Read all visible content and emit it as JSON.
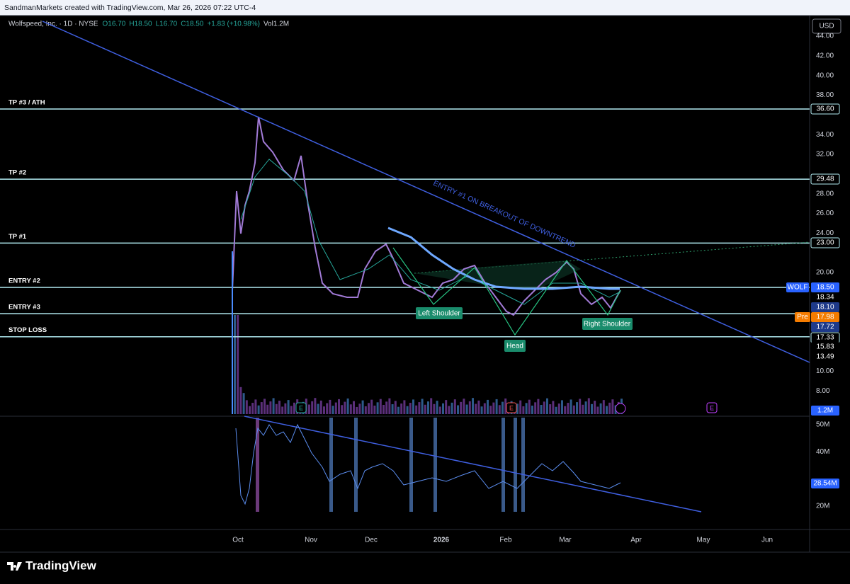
{
  "header": {
    "attribution": "SandmanMarkets created with TradingView.com, Mar 26, 2026 07:22 UTC-4",
    "symbol": "Wolfspeed, Inc. · 1D · NYSE",
    "ohlc": [
      "O16.70",
      "H18.50",
      "L16.70",
      "C18.50",
      "+1.83 (+10.98%)"
    ],
    "volume": "Vol1.2M",
    "currency": "USD"
  },
  "price_axis": {
    "ticks": [
      {
        "value": 44,
        "label": "44.00"
      },
      {
        "value": 42,
        "label": "42.00"
      },
      {
        "value": 40,
        "label": "40.00"
      },
      {
        "value": 38,
        "label": "38.00"
      },
      {
        "value": 34,
        "label": "34.00"
      },
      {
        "value": 32,
        "label": "32.00"
      },
      {
        "value": 28,
        "label": "28.00"
      },
      {
        "value": 26,
        "label": "26.00"
      },
      {
        "value": 24,
        "label": "24.00"
      },
      {
        "value": 20,
        "label": "20.00"
      },
      {
        "value": 10,
        "label": "10.00"
      },
      {
        "value": 8,
        "label": "8.00"
      }
    ]
  },
  "levels": [
    {
      "label": "TP #3 / ATH",
      "price": {
        "value": 36.6,
        "label": "36.60"
      }
    },
    {
      "label": "TP #2",
      "price": {
        "value": 29.48,
        "label": "29.48"
      }
    },
    {
      "label": "TP #1",
      "price": {
        "value": 23,
        "label": "23.00"
      }
    },
    {
      "label": "ENTRY #2",
      "price": {
        "value": 18.5,
        "label": "18.50"
      }
    },
    {
      "label": "ENTRY #3",
      "price": {
        "value": 15.83,
        "label": "15.83"
      }
    },
    {
      "label": "STOP LOSS",
      "price": {
        "value": 13.49,
        "label": "13.49"
      }
    }
  ],
  "tags": {
    "symbol": "WOLF",
    "pre": "Pre",
    "prices": [
      "18.34",
      "18.10",
      "17.98",
      "17.72",
      "17.33"
    ],
    "volume": "1.2M",
    "indicator": "28.54M"
  },
  "annotations": {
    "trend": "ENTRY #1 ON BREAKOUT OF DOWNTREND",
    "left_shoulder": "Left Shoulder",
    "head": "Head",
    "right_shoulder": "Right Shoulder"
  },
  "events": [
    "E",
    "E",
    "E"
  ],
  "indicator_axis": {
    "ticks": [
      {
        "value": 50,
        "label": "50M"
      },
      {
        "value": 40,
        "label": "40M"
      },
      {
        "value": 20,
        "label": "20M"
      }
    ]
  },
  "time_axis": [
    "Oct",
    "Nov",
    "Dec",
    "2026",
    "Feb",
    "Mar",
    "Apr",
    "May",
    "Jun"
  ],
  "footer": {
    "brand": "TradingView"
  }
}
